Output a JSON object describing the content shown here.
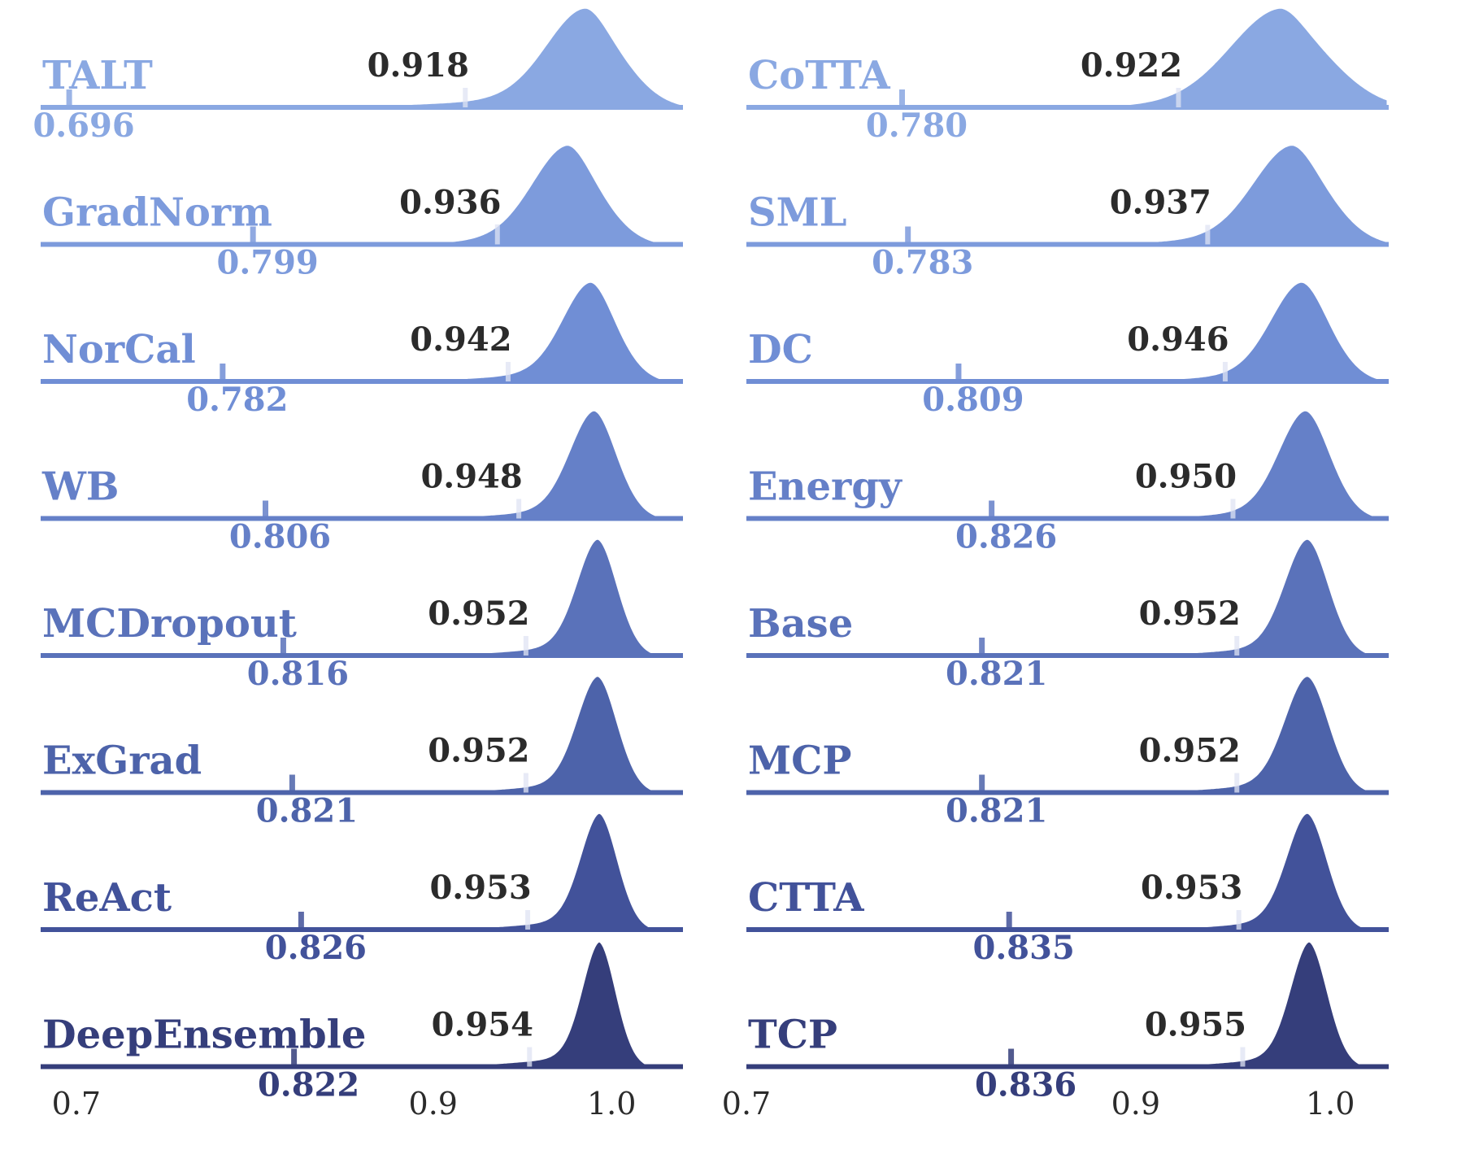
{
  "chart_data": [
    {
      "type": "area",
      "x_ticks": [
        "0.7",
        "0.9",
        "1.0"
      ],
      "xlim": [
        0.68,
        1.04
      ],
      "series": [
        {
          "name": "TALT",
          "mean": 0.918,
          "min": 0.696,
          "mean_label": "0.918",
          "min_label": "0.696",
          "peak": 0.985,
          "height": 1.0,
          "spread": 0.022,
          "color": "#8aa8e2"
        },
        {
          "name": "GradNorm",
          "mean": 0.936,
          "min": 0.799,
          "mean_label": "0.936",
          "min_label": "0.799",
          "peak": 0.975,
          "height": 1.0,
          "spread": 0.02,
          "color": "#7d9bdc"
        },
        {
          "name": "NorCal",
          "mean": 0.942,
          "min": 0.782,
          "mean_label": "0.942",
          "min_label": "0.782",
          "peak": 0.988,
          "height": 1.0,
          "spread": 0.016,
          "color": "#708ed5"
        },
        {
          "name": "WB",
          "mean": 0.948,
          "min": 0.806,
          "mean_label": "0.948",
          "min_label": "0.806",
          "peak": 0.99,
          "height": 1.1,
          "spread": 0.014,
          "color": "#6580c8"
        },
        {
          "name": "MCDropout",
          "mean": 0.952,
          "min": 0.816,
          "mean_label": "0.952",
          "min_label": "0.816",
          "peak": 0.992,
          "height": 1.2,
          "spread": 0.012,
          "color": "#5a72ba"
        },
        {
          "name": "ExGrad",
          "mean": 0.952,
          "min": 0.821,
          "mean_label": "0.952",
          "min_label": "0.821",
          "peak": 0.992,
          "height": 1.2,
          "spread": 0.012,
          "color": "#4d63aa"
        },
        {
          "name": "ReAct",
          "mean": 0.953,
          "min": 0.826,
          "mean_label": "0.953",
          "min_label": "0.826",
          "peak": 0.993,
          "height": 1.2,
          "spread": 0.011,
          "color": "#42529a"
        },
        {
          "name": "DeepEnsemble",
          "mean": 0.954,
          "min": 0.822,
          "mean_label": "0.954",
          "min_label": "0.822",
          "peak": 0.993,
          "height": 1.3,
          "spread": 0.01,
          "color": "#353e7b"
        }
      ]
    },
    {
      "type": "area",
      "x_ticks": [
        "0.7",
        "0.9",
        "1.0"
      ],
      "xlim": [
        0.7,
        1.03
      ],
      "series": [
        {
          "name": "CoTTA",
          "mean": 0.922,
          "min": 0.78,
          "mean_label": "0.922",
          "min_label": "0.780",
          "peak": 0.974,
          "height": 1.0,
          "spread": 0.026,
          "color": "#8aa8e2"
        },
        {
          "name": "SML",
          "mean": 0.937,
          "min": 0.783,
          "mean_label": "0.937",
          "min_label": "0.783",
          "peak": 0.98,
          "height": 1.0,
          "spread": 0.02,
          "color": "#7d9bdc"
        },
        {
          "name": "DC",
          "mean": 0.946,
          "min": 0.809,
          "mean_label": "0.946",
          "min_label": "0.809",
          "peak": 0.985,
          "height": 1.0,
          "spread": 0.016,
          "color": "#708ed5"
        },
        {
          "name": "Energy",
          "mean": 0.95,
          "min": 0.826,
          "mean_label": "0.950",
          "min_label": "0.826",
          "peak": 0.987,
          "height": 1.1,
          "spread": 0.014,
          "color": "#6580c8"
        },
        {
          "name": "Base",
          "mean": 0.952,
          "min": 0.821,
          "mean_label": "0.952",
          "min_label": "0.821",
          "peak": 0.988,
          "height": 1.2,
          "spread": 0.012,
          "color": "#5a72ba"
        },
        {
          "name": "MCP",
          "mean": 0.952,
          "min": 0.821,
          "mean_label": "0.952",
          "min_label": "0.821",
          "peak": 0.988,
          "height": 1.2,
          "spread": 0.012,
          "color": "#4d63aa"
        },
        {
          "name": "CTTA",
          "mean": 0.953,
          "min": 0.835,
          "mean_label": "0.953",
          "min_label": "0.835",
          "peak": 0.988,
          "height": 1.2,
          "spread": 0.011,
          "color": "#42529a"
        },
        {
          "name": "TCP",
          "mean": 0.955,
          "min": 0.836,
          "mean_label": "0.955",
          "min_label": "0.836",
          "peak": 0.989,
          "height": 1.3,
          "spread": 0.01,
          "color": "#353e7b"
        }
      ]
    }
  ]
}
